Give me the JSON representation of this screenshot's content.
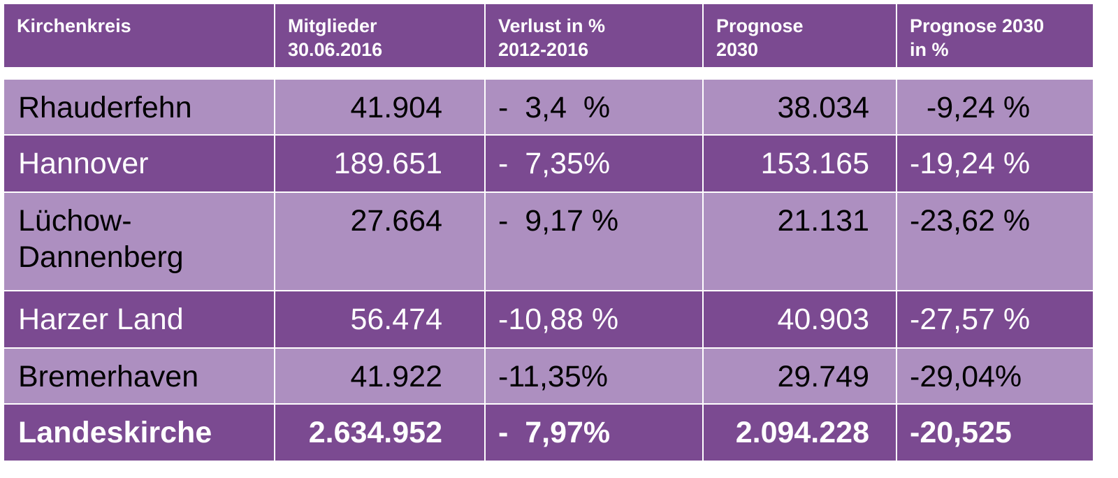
{
  "chart_data": {
    "type": "table",
    "columns": [
      "Kirchenkreis",
      "Mitglieder\n30.06.2016",
      "Verlust in %\n2012-2016",
      "Prognose\n2030",
      "Prognose 2030\nin %"
    ],
    "rows": [
      [
        "Rhauderfehn",
        "41.904",
        "-  3,4  %",
        "38.034",
        "  -9,24 %"
      ],
      [
        "Hannover",
        "189.651",
        "-  7,35%",
        "153.165",
        "-19,24 %"
      ],
      [
        "Lüchow-\nDannenberg",
        "27.664",
        "-  9,17 %",
        "21.131",
        "-23,62 %"
      ],
      [
        "Harzer Land",
        "56.474",
        "-10,88 %",
        "40.903",
        "-27,57 %"
      ],
      [
        "Bremerhaven",
        "41.922",
        "-11,35%",
        "29.749",
        "-29,04%"
      ],
      [
        "Landeskirche",
        "2.634.952",
        "-  7,97%",
        "2.094.228",
        "-20,525"
      ]
    ],
    "colors": {
      "header": "#7b4a91",
      "row_dark": "#7b4a91",
      "row_light": "#ad8fc0",
      "text_dark": "#000000",
      "text_light": "#ffffff"
    }
  }
}
